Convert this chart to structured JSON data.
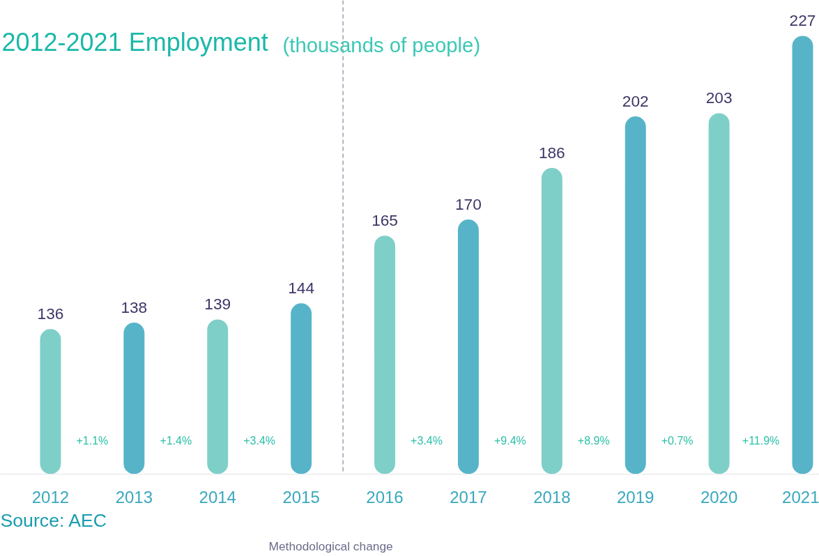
{
  "chart_data": {
    "type": "bar",
    "title": "2012-2021 Employment",
    "subtitle": "(thousands of people)",
    "x": [
      2012,
      2013,
      2014,
      2015,
      2016,
      2017,
      2018,
      2019,
      2020,
      2021
    ],
    "values": [
      136,
      138,
      139,
      144,
      165,
      170,
      186,
      202,
      203,
      227
    ],
    "colors": [
      "#7fcfc9",
      "#57b4c8",
      "#7fcfc9",
      "#57b4c8",
      "#7fcfc9",
      "#57b4c8",
      "#7fcfc9",
      "#57b4c8",
      "#7fcfc9",
      "#57b4c8"
    ],
    "data_labels": true,
    "xlim": [
      2011.4,
      2021.2
    ],
    "xticks": [
      2012,
      2013,
      2014,
      2015,
      2016,
      2017,
      2018,
      2019,
      2020,
      2021
    ],
    "ylim": [
      91,
      238
    ],
    "tick_labels": "x",
    "grid": false,
    "ref_lines": [
      {
        "axis": "x",
        "value": 2015.5,
        "label": "Methodological change",
        "color": "#6b6b8a",
        "line_style": "dashed"
      }
    ],
    "annotations": [
      "+1.1%",
      "+1.4%",
      "+3.4%",
      "+3.4%",
      "+9.4%",
      "+8.9%",
      "+0.7%",
      "+11.9%",
      "Source: AEC"
    ]
  }
}
